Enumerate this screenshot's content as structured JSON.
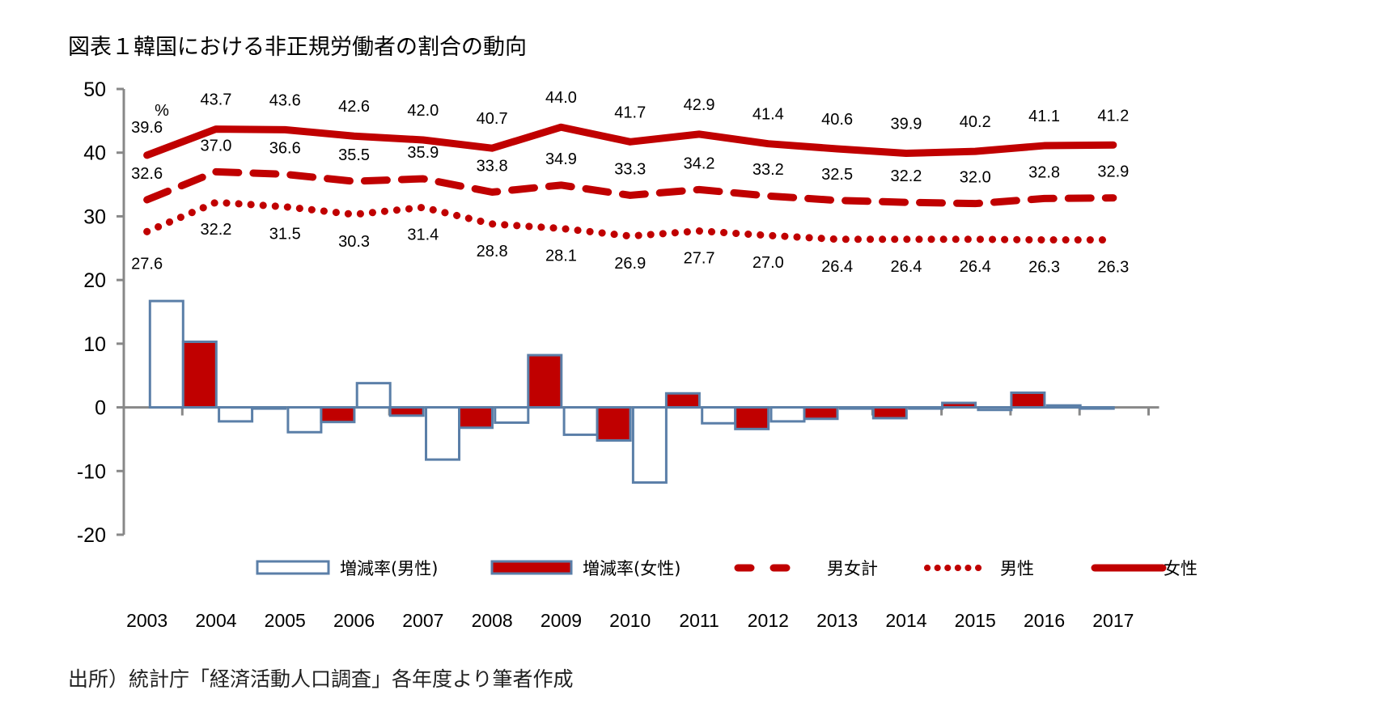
{
  "title": "図表１韓国における非正規労働者の割合の動向",
  "source_note": "出所）統計庁「経済活動人口調査」各年度より筆者作成",
  "chart_data": {
    "type": "bar+line",
    "title": "図表１韓国における非正規労働者の割合の動向",
    "unit_label": "%",
    "xlabel": "",
    "ylabel": "",
    "ylim": [
      -20,
      50
    ],
    "yticks": [
      50,
      40,
      30,
      20,
      10,
      0,
      -10,
      -20
    ],
    "grid": false,
    "legend_position": "bottom-center",
    "categories": [
      "2003",
      "2004",
      "2005",
      "2006",
      "2007",
      "2008",
      "2009",
      "2010",
      "2011",
      "2012",
      "2013",
      "2014",
      "2015",
      "2016",
      "2017"
    ],
    "series": [
      {
        "name": "増減率(男性)",
        "type": "bar",
        "style": "outline",
        "fill": "#ffffff",
        "stroke": "#5b7fa8",
        "values": [
          null,
          16.7,
          -2.2,
          -3.9,
          3.8,
          -8.2,
          -2.4,
          -4.3,
          -11.8,
          -2.5,
          -2.2,
          0.0,
          0.0,
          -0.4,
          0.3
        ]
      },
      {
        "name": "増減率(女性)",
        "type": "bar",
        "style": "filled",
        "fill": "#c00000",
        "stroke": "#5b7fa8",
        "values": [
          null,
          10.3,
          -0.1,
          -2.3,
          -1.3,
          -3.2,
          8.2,
          -5.2,
          2.2,
          -3.4,
          -1.8,
          -1.7,
          0.7,
          2.3,
          0.0
        ]
      },
      {
        "name": "男女計",
        "type": "line",
        "style": "dashed",
        "color": "#c00000",
        "values": [
          32.6,
          37.0,
          36.6,
          35.5,
          35.9,
          33.8,
          34.9,
          33.3,
          34.2,
          33.2,
          32.5,
          32.2,
          32.0,
          32.8,
          32.9
        ],
        "labels": [
          "32.6",
          "37.0",
          "36.6",
          "35.5",
          "35.9",
          "33.8",
          "34.9",
          "33.3",
          "34.2",
          "33.2",
          "32.5",
          "32.2",
          "32.0",
          "32.8",
          "32.9"
        ]
      },
      {
        "name": "男性",
        "type": "line",
        "style": "dotted",
        "color": "#c00000",
        "values": [
          27.6,
          32.2,
          31.5,
          30.3,
          31.4,
          28.8,
          28.1,
          26.9,
          27.7,
          27.0,
          26.4,
          26.4,
          26.4,
          26.3,
          26.3
        ],
        "labels": [
          "27.6",
          "32.2",
          "31.5",
          "30.3",
          "31.4",
          "28.8",
          "28.1",
          "26.9",
          "27.7",
          "27.0",
          "26.4",
          "26.4",
          "26.4",
          "26.3",
          "26.3"
        ]
      },
      {
        "name": "女性",
        "type": "line",
        "style": "solid",
        "color": "#c00000",
        "values": [
          39.6,
          43.7,
          43.6,
          42.6,
          42.0,
          40.7,
          44.0,
          41.7,
          42.9,
          41.4,
          40.6,
          39.9,
          40.2,
          41.1,
          41.2
        ],
        "labels": [
          "39.6",
          "43.7",
          "43.6",
          "42.6",
          "42.0",
          "40.7",
          "44.0",
          "41.7",
          "42.9",
          "41.4",
          "40.6",
          "39.9",
          "40.2",
          "41.1",
          "41.2"
        ]
      }
    ],
    "legend": [
      {
        "name": "増減率(男性)",
        "marker": "outline-bar"
      },
      {
        "name": "増減率(女性)",
        "marker": "filled-bar"
      },
      {
        "name": "男女計",
        "marker": "dashed-line"
      },
      {
        "name": "男性",
        "marker": "dotted-line"
      },
      {
        "name": "女性",
        "marker": "solid-line"
      }
    ],
    "colors": {
      "axis": "#888888",
      "bar_outline": "#5b7fa8",
      "accent_red": "#c00000"
    }
  }
}
